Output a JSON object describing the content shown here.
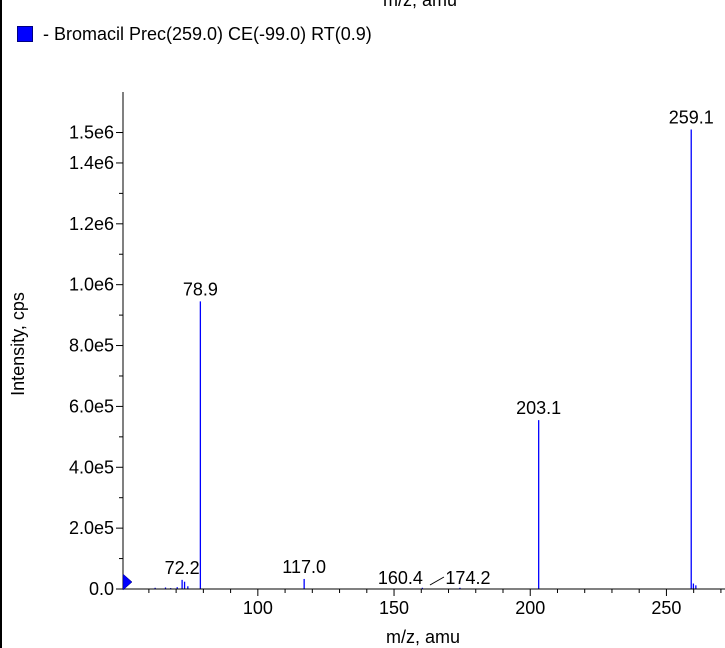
{
  "top_clipped_text": "m/z, amu",
  "legend": {
    "label": "- Bromacil Prec(259.0) CE(-99.0) RT(0.9)",
    "color": "#0000ff"
  },
  "chart_data": {
    "type": "bar",
    "title": "",
    "xlabel": "m/z, amu",
    "ylabel": "Intensity, cps",
    "xlim": [
      50.5,
      271.5
    ],
    "ylim": [
      0,
      1620000
    ],
    "x_ticks": [
      {
        "value": 100,
        "label": "100"
      },
      {
        "value": 150,
        "label": "150"
      },
      {
        "value": 200,
        "label": "200"
      },
      {
        "value": 250,
        "label": "250"
      }
    ],
    "y_ticks": [
      {
        "value": 0,
        "label": "0.0"
      },
      {
        "value": 200000,
        "label": "2.0e5"
      },
      {
        "value": 400000,
        "label": "4.0e5"
      },
      {
        "value": 600000,
        "label": "6.0e5"
      },
      {
        "value": 800000,
        "label": "8.0e5"
      },
      {
        "value": 1000000,
        "label": "1.0e6"
      },
      {
        "value": 1200000,
        "label": "1.2e6"
      },
      {
        "value": 1400000,
        "label": "1.4e6"
      },
      {
        "value": 1500000,
        "label": "1.5e6"
      }
    ],
    "series": [
      {
        "color": "#0000ff",
        "x": [
          62.3,
          66.1,
          68.0,
          70.4,
          72.2,
          73.1,
          74.3,
          78.9,
          117.0,
          160.4,
          174.2,
          203.1,
          259.1,
          259.9,
          260.8
        ],
        "values": [
          4000,
          5000,
          3000,
          6000,
          30000,
          24000,
          9000,
          945000,
          33000,
          4000,
          4000,
          555000,
          1510000,
          18000,
          12000
        ]
      }
    ],
    "peak_labels": [
      {
        "x": 72.2,
        "y": 30000,
        "text": "72.2"
      },
      {
        "x": 78.9,
        "y": 945000,
        "text": "78.9"
      },
      {
        "x": 117.0,
        "y": 33000,
        "text": "117.0"
      },
      {
        "x": 160.4,
        "y": 4000,
        "text": "160.4"
      },
      {
        "x": 174.2,
        "y": 4000,
        "text": "174.2"
      },
      {
        "x": 203.1,
        "y": 555000,
        "text": "203.1"
      },
      {
        "x": 259.1,
        "y": 1510000,
        "text": "259.1"
      }
    ]
  }
}
